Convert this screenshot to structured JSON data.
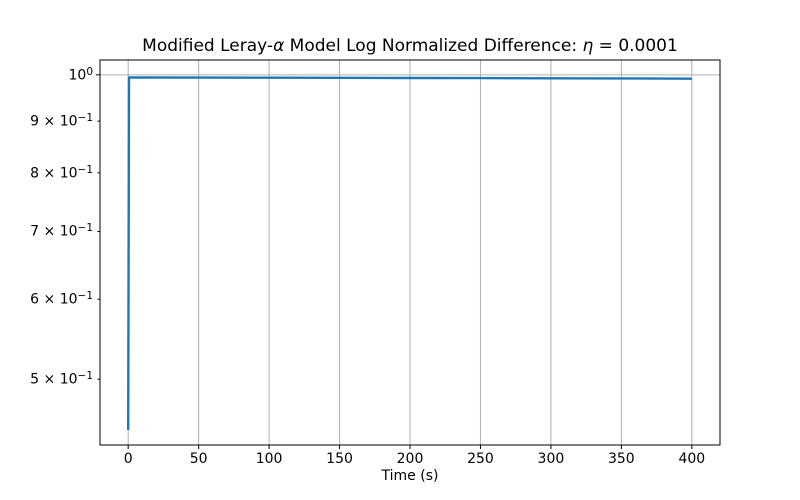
{
  "figure": {
    "background": "#ffffff",
    "title_parts": [
      {
        "text": "Modified Leray-",
        "italic": false
      },
      {
        "text": "α",
        "italic": true
      },
      {
        "text": " Model Log Normalized Difference: ",
        "italic": false
      },
      {
        "text": "η",
        "italic": true
      },
      {
        "text": " = 0.0001",
        "italic": false
      }
    ]
  },
  "chart_data": {
    "type": "line",
    "title": "Modified Leray-α Model Log Normalized Difference: η = 0.0001",
    "xlabel": "Time (s)",
    "ylabel": "",
    "xscale": "linear",
    "yscale": "log",
    "xlim": [
      -20,
      420
    ],
    "ylim": [
      0.4305,
      1.0344
    ],
    "xticks": [
      0,
      50,
      100,
      150,
      200,
      250,
      300,
      350,
      400
    ],
    "yticks": [
      {
        "value": 1.0,
        "base": "10",
        "exp": "0",
        "major": true
      },
      {
        "value": 0.9,
        "base": "9 × 10",
        "exp": "−1",
        "major": false
      },
      {
        "value": 0.8,
        "base": "8 × 10",
        "exp": "−1",
        "major": false
      },
      {
        "value": 0.7,
        "base": "7 × 10",
        "exp": "−1",
        "major": false
      },
      {
        "value": 0.6,
        "base": "6 × 10",
        "exp": "−1",
        "major": false
      },
      {
        "value": 0.5,
        "base": "5 × 10",
        "exp": "−1",
        "major": false
      }
    ],
    "grid": {
      "show": true,
      "color": "#b0b0b0",
      "which": "major"
    },
    "spine_color": "#000000",
    "x": [
      0,
      0.6,
      50,
      100,
      150,
      200,
      250,
      300,
      350,
      400
    ],
    "series": [
      {
        "color": "#1f77b4",
        "linewidth": 2.4,
        "values": [
          0.4455,
          0.9942,
          0.99387,
          0.99354,
          0.99321,
          0.99288,
          0.99255,
          0.99222,
          0.99189,
          0.9912
        ]
      }
    ]
  }
}
